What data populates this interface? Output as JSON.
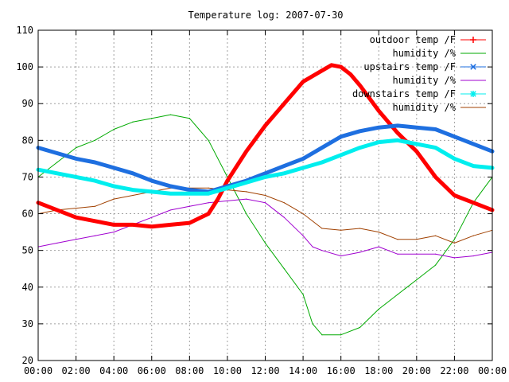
{
  "chart_data": {
    "type": "line",
    "title": "Temperature log: 2007-07-30",
    "xlabel": "",
    "ylabel": "",
    "x_ticks": [
      "00:00",
      "02:00",
      "04:00",
      "06:00",
      "08:00",
      "10:00",
      "12:00",
      "14:00",
      "16:00",
      "18:00",
      "20:00",
      "22:00",
      "00:00"
    ],
    "x_range_hours": [
      0,
      24
    ],
    "y_ticks": [
      20,
      30,
      40,
      50,
      60,
      70,
      80,
      90,
      100,
      110
    ],
    "ylim": [
      20,
      110
    ],
    "grid": true,
    "legend_position": "top-right",
    "series": [
      {
        "name": "outdoor temp /F",
        "color": "#ff0000",
        "marker": "plus",
        "x": [
          0,
          1,
          2,
          3,
          4,
          5,
          6,
          7,
          8,
          9,
          9.5,
          10,
          10.5,
          11,
          12,
          13,
          14,
          15,
          15.5,
          16,
          16.5,
          17,
          18,
          19,
          20,
          21,
          22,
          23,
          24
        ],
        "y": [
          63,
          61,
          59,
          58,
          57,
          57,
          56.5,
          57,
          57.5,
          60,
          64,
          69,
          73,
          77,
          84,
          90,
          96,
          99,
          100.5,
          100,
          98,
          95,
          88,
          82,
          77,
          70,
          65,
          63,
          61
        ]
      },
      {
        "name": "humidity /%",
        "color": "#00aa00",
        "marker": "none",
        "x": [
          0,
          1,
          2,
          3,
          4,
          5,
          6,
          7,
          8,
          9,
          10,
          11,
          12,
          13,
          14,
          14.5,
          15,
          16,
          17,
          18,
          19,
          20,
          21,
          22,
          23,
          24
        ],
        "y": [
          70,
          74,
          78,
          80,
          83,
          85,
          86,
          87,
          86,
          80,
          70,
          60,
          52,
          45,
          38,
          30,
          27,
          27,
          29,
          34,
          38,
          42,
          46,
          53,
          63,
          70
        ]
      },
      {
        "name": "upstairs temp /F",
        "color": "#1e6fe0",
        "marker": "x",
        "x": [
          0,
          1,
          2,
          3,
          4,
          5,
          6,
          7,
          8,
          9,
          10,
          11,
          12,
          13,
          14,
          15,
          16,
          17,
          18,
          19,
          20,
          21,
          22,
          23,
          24
        ],
        "y": [
          78,
          76.5,
          75,
          74,
          72.5,
          71,
          69,
          67.5,
          66.5,
          66,
          67.5,
          69,
          71,
          73,
          75,
          78,
          81,
          82.5,
          83.5,
          84,
          83.5,
          83,
          81,
          79,
          77
        ]
      },
      {
        "name": "humidity /%",
        "color": "#a000d0",
        "marker": "none",
        "x": [
          0,
          1,
          2,
          3,
          4,
          5,
          6,
          7,
          8,
          9,
          10,
          11,
          12,
          13,
          14,
          14.5,
          15,
          16,
          17,
          18,
          19,
          20,
          21,
          22,
          23,
          24
        ],
        "y": [
          51,
          52,
          53,
          54,
          55,
          57,
          59,
          61,
          62,
          63,
          63.5,
          64,
          63,
          59,
          54,
          51,
          50,
          48.5,
          49.5,
          51,
          49,
          49,
          49,
          48,
          48.5,
          49.5
        ]
      },
      {
        "name": "downstairs temp /F",
        "color": "#00eeee",
        "marker": "star",
        "x": [
          0,
          1,
          2,
          3,
          4,
          5,
          6,
          7,
          8,
          9,
          10,
          11,
          12,
          13,
          14,
          15,
          16,
          17,
          18,
          19,
          20,
          21,
          22,
          23,
          24
        ],
        "y": [
          72,
          71,
          70,
          69,
          67.5,
          66.5,
          66,
          65.5,
          65.5,
          65.5,
          67,
          68.5,
          70,
          71,
          72.5,
          74,
          76,
          78,
          79.5,
          80,
          79,
          78,
          75,
          73,
          72.5
        ]
      },
      {
        "name": "humidity /%",
        "color": "#a04000",
        "marker": "none",
        "x": [
          0,
          1,
          2,
          3,
          4,
          5,
          6,
          7,
          8,
          9,
          10,
          11,
          12,
          13,
          14,
          15,
          16,
          17,
          18,
          19,
          20,
          21,
          22,
          23,
          24
        ],
        "y": [
          60,
          61,
          61.5,
          62,
          64,
          65,
          66,
          67,
          67,
          67,
          66.5,
          66,
          65,
          63,
          60,
          56,
          55.5,
          56,
          55,
          53,
          53,
          54,
          52,
          54,
          55.5
        ]
      }
    ]
  }
}
